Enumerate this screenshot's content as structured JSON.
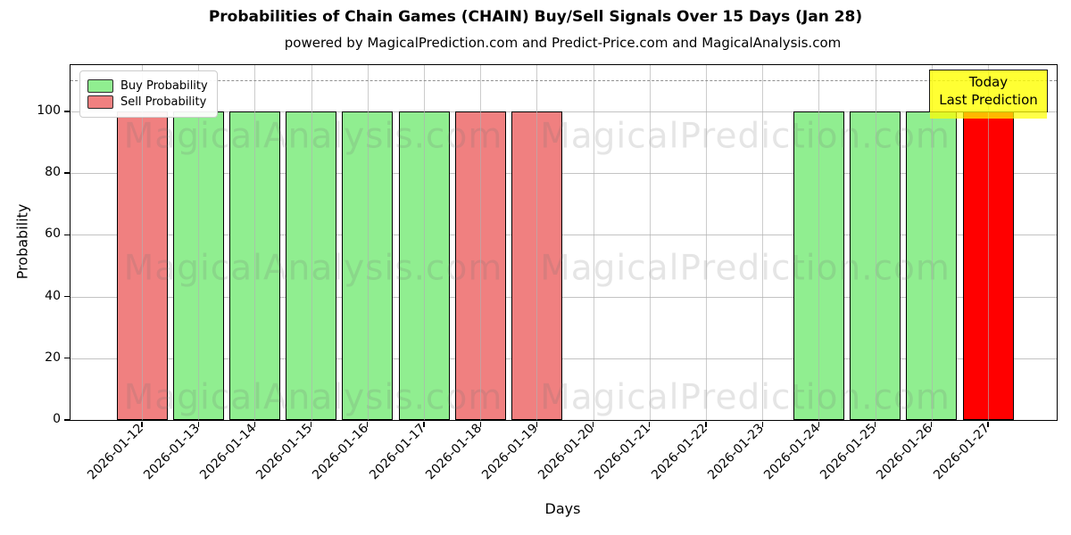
{
  "chart_data": {
    "type": "bar",
    "title": "Probabilities of Chain Games (CHAIN) Buy/Sell Signals Over 15 Days (Jan 28)",
    "subtitle": "powered by MagicalPrediction.com and Predict-Price.com and MagicalAnalysis.com",
    "xlabel": "Days",
    "ylabel": "Probability",
    "ylim": [
      0,
      115
    ],
    "yticks": [
      0,
      20,
      40,
      60,
      80,
      100
    ],
    "grid": true,
    "dashed_line_y": 110,
    "bar_edge_color": "#000000",
    "categories": [
      "2026-01-12",
      "2026-01-13",
      "2026-01-14",
      "2026-01-15",
      "2026-01-16",
      "2026-01-17",
      "2026-01-18",
      "2026-01-19",
      "2026-01-20",
      "2026-01-21",
      "2026-01-22",
      "2026-01-23",
      "2026-01-24",
      "2026-01-25",
      "2026-01-26",
      "2026-01-27"
    ],
    "series": [
      {
        "name": "Buy Probability",
        "color": "#90EE90",
        "values": [
          null,
          100,
          100,
          100,
          100,
          100,
          null,
          null,
          null,
          null,
          null,
          null,
          100,
          100,
          100,
          null
        ]
      },
      {
        "name": "Sell Probability",
        "color": "#F08080",
        "values": [
          100,
          null,
          null,
          null,
          null,
          null,
          100,
          100,
          null,
          null,
          null,
          null,
          null,
          null,
          null,
          null
        ]
      },
      {
        "name": "Today Prediction",
        "color": "#FF0000",
        "values": [
          null,
          null,
          null,
          null,
          null,
          null,
          null,
          null,
          null,
          null,
          null,
          null,
          null,
          null,
          null,
          100
        ]
      }
    ],
    "legend": {
      "position": "upper left",
      "items": [
        {
          "label": "Buy Probability",
          "color": "#90EE90"
        },
        {
          "label": "Sell Probability",
          "color": "#F08080"
        }
      ]
    },
    "annotation": {
      "lines": [
        "Today",
        "Last Prediction"
      ],
      "bg": "#FFFF00",
      "border": "#000000"
    },
    "watermarks": [
      "MagicalAnalysis.com",
      "MagicalPrediction.com"
    ]
  }
}
